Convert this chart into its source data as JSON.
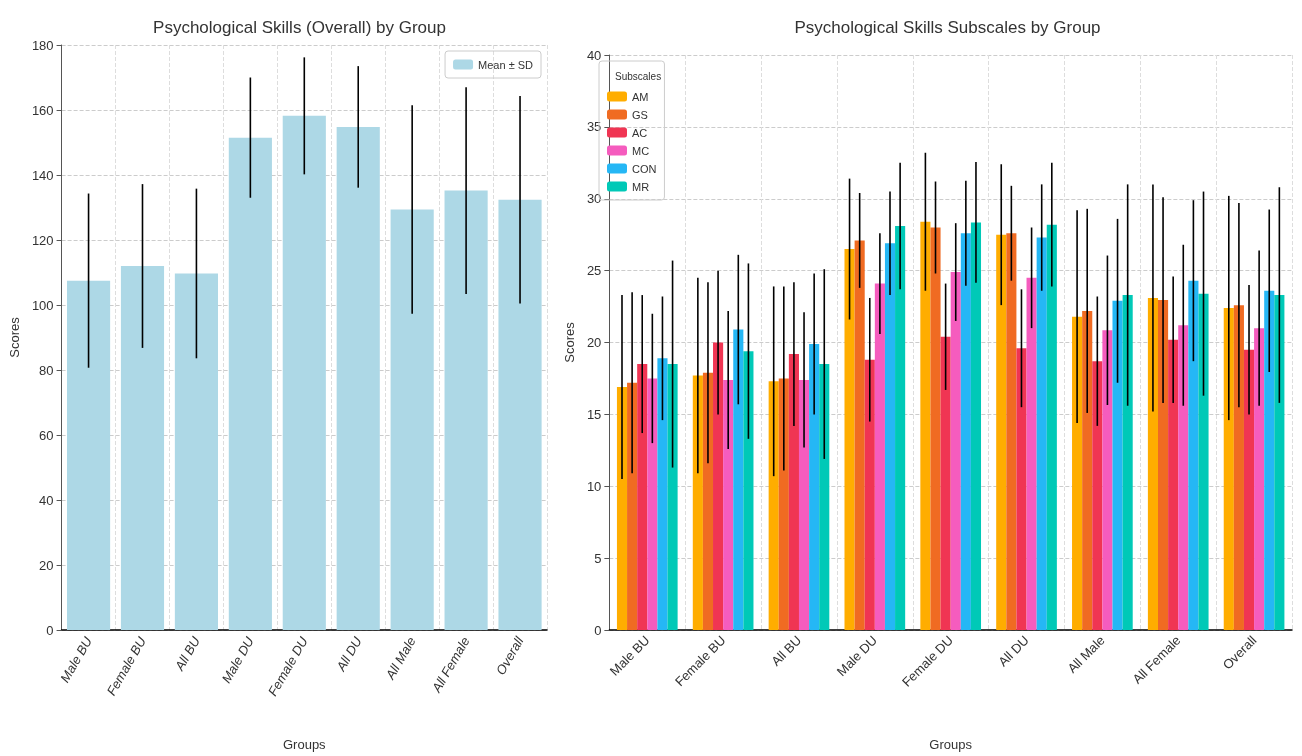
{
  "chart_data": [
    {
      "type": "bar",
      "title": "Psychological Skills (Overall) by Group",
      "xlabel": "Groups",
      "ylabel": "Scores",
      "categories": [
        "Male BU",
        "Female BU",
        "All BU",
        "Male DU",
        "Female DU",
        "All DU",
        "All Male",
        "All Female",
        "Overall"
      ],
      "series": [
        {
          "name": "Mean ± SD",
          "color": "#add8e6",
          "values": [
            107.5,
            112,
            109.7,
            151.5,
            158.2,
            154.8,
            129.4,
            135.2,
            132.4
          ],
          "errors": [
            26.8,
            25.2,
            26.1,
            18.5,
            18,
            18.7,
            32.1,
            31.8,
            31.9
          ]
        }
      ],
      "ylim": [
        0,
        180
      ],
      "yticks": [
        0,
        20,
        40,
        60,
        80,
        100,
        120,
        140,
        160,
        180
      ],
      "grid": true,
      "legend": "top right"
    },
    {
      "type": "bar",
      "title": "Psychological Skills Subscales by Group",
      "xlabel": "Groups",
      "ylabel": "Scores",
      "legend_title": "Subscales",
      "categories": [
        "Male BU",
        "Female BU",
        "All BU",
        "Male DU",
        "Female DU",
        "All DU",
        "All Male",
        "All Female",
        "Overall"
      ],
      "series": [
        {
          "name": "AM",
          "color": "#ffad00",
          "values": [
            16.9,
            17.7,
            17.3,
            26.5,
            28.4,
            27.5,
            21.8,
            23.1,
            22.4
          ],
          "errors": [
            6.4,
            6.8,
            6.6,
            4.9,
            4.8,
            4.9,
            7.4,
            7.9,
            7.8
          ]
        },
        {
          "name": "GS",
          "color": "#f06b22",
          "values": [
            17.2,
            17.9,
            17.5,
            27.1,
            28,
            27.6,
            22.2,
            22.95,
            22.6
          ],
          "errors": [
            6.3,
            6.3,
            6.4,
            3.3,
            3.2,
            3.3,
            7.1,
            7.15,
            7.1
          ]
        },
        {
          "name": "AC",
          "color": "#f03553",
          "values": [
            18.5,
            20,
            19.2,
            18.8,
            20.4,
            19.6,
            18.7,
            20.2,
            19.5
          ],
          "errors": [
            4.8,
            5,
            5,
            4.3,
            3.7,
            4.1,
            4.5,
            4.4,
            4.5
          ]
        },
        {
          "name": "MC",
          "color": "#f55cbe",
          "values": [
            17.5,
            17.4,
            17.4,
            24.1,
            24.9,
            24.5,
            20.85,
            21.2,
            21
          ],
          "errors": [
            4.5,
            4.8,
            4.7,
            3.5,
            3.4,
            3.5,
            5.2,
            5.6,
            5.4
          ]
        },
        {
          "name": "CON",
          "color": "#25b7f5",
          "values": [
            18.9,
            20.9,
            19.9,
            26.9,
            27.6,
            27.3,
            22.9,
            24.3,
            23.6
          ],
          "errors": [
            4.3,
            5.2,
            4.9,
            3.6,
            3.65,
            3.7,
            5.7,
            5.6,
            5.65
          ]
        },
        {
          "name": "MR",
          "color": "#00c9b7",
          "values": [
            18.5,
            19.4,
            18.5,
            28.1,
            28.35,
            28.2,
            23.3,
            23.4,
            23.3
          ],
          "errors": [
            7.2,
            6.1,
            6.6,
            4.4,
            4.2,
            4.3,
            7.7,
            7.1,
            7.5
          ]
        }
      ],
      "ylim": [
        0,
        40
      ],
      "yticks": [
        0,
        5,
        10,
        15,
        20,
        25,
        30,
        35,
        40
      ],
      "grid": true,
      "legend": "top left"
    }
  ]
}
